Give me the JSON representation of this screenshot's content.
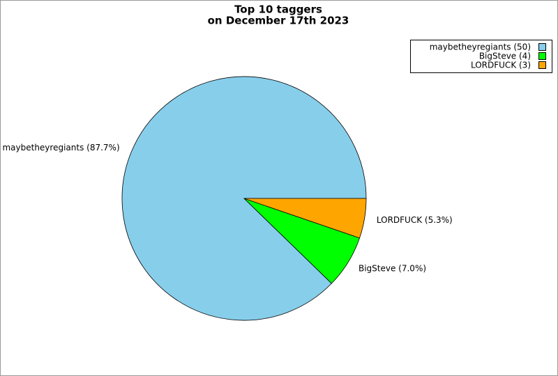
{
  "chart_data": {
    "type": "pie",
    "title": "Top 10 taggers",
    "subtitle": "on December 17th 2023",
    "categories": [
      "maybetheyregiants",
      "BigSteve",
      "LORDFUCK"
    ],
    "values": [
      50,
      4,
      3
    ],
    "colors": [
      "#87ceeb",
      "#00ff00",
      "#ffa500"
    ],
    "legend_labels": [
      "maybetheyregiants (50)",
      "BigSteve (4)",
      "LORDFUCK (3)"
    ],
    "slice_labels": [
      "maybetheyregiants (87.7%)",
      "BigSteve (7.0%)",
      "LORDFUCK (5.3%)"
    ],
    "legend": "upper right"
  }
}
